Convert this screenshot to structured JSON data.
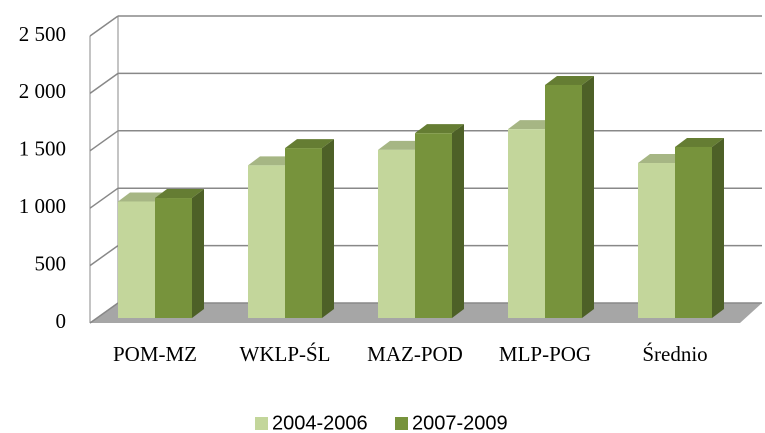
{
  "chart_data": {
    "type": "bar3d",
    "categories": [
      "POM-MZ",
      "WKLP-ŚL",
      "MAZ-POD",
      "MLP-POG",
      "Średnio"
    ],
    "series": [
      {
        "name": "2004-2006",
        "color": "#c3d69b",
        "values": [
          1015,
          1330,
          1465,
          1645,
          1350
        ]
      },
      {
        "name": "2007-2009",
        "color": "#77933c",
        "values": [
          1045,
          1480,
          1610,
          2030,
          1490
        ]
      }
    ],
    "ylim": [
      0,
      2500
    ],
    "yticks": [
      0,
      500,
      {
        "value": 1000,
        "label": "1 000"
      },
      {
        "value": 1500,
        "label": "1 500"
      },
      {
        "value": 2000,
        "label": "2 000"
      },
      {
        "value": 2500,
        "label": "2 500"
      }
    ],
    "grid": true,
    "legend": "bottom"
  }
}
